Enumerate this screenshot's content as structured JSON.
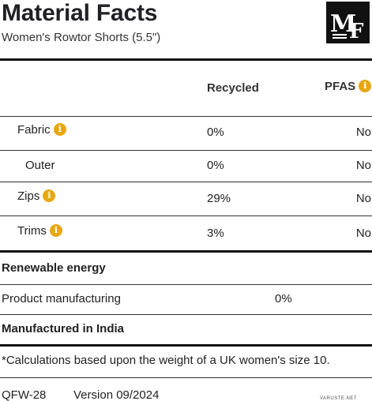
{
  "header": {
    "title": "Material Facts",
    "subtitle": "Women's Rowtor Shorts (5.5\")",
    "logo_text": "MF",
    "logo_icon": "mf-monogram-logo"
  },
  "table": {
    "columns": {
      "recycled": "Recycled",
      "pfas": "PFAS"
    },
    "info_glyph": "i",
    "rows": [
      {
        "label": "Fabric",
        "has_info": true,
        "recycled": "0%",
        "pfas": "No"
      },
      {
        "label": "Outer",
        "has_info": false,
        "recycled": "0%",
        "pfas": "No"
      },
      {
        "label": "Zips",
        "has_info": true,
        "recycled": "29%",
        "pfas": "No"
      },
      {
        "label": "Trims",
        "has_info": true,
        "recycled": "3%",
        "pfas": "No"
      }
    ]
  },
  "renewable": {
    "heading": "Renewable energy",
    "row_label": "Product manufacturing",
    "row_value": "0%"
  },
  "manufactured": "Manufactured in India",
  "footnote": "*Calculations based upon the weight of a UK women's size 10.",
  "footer": {
    "code": "QFW-28",
    "version": "Version 09/2024"
  },
  "watermark": "VARUSTE.NET",
  "colors": {
    "info_badge": "#e8a70f",
    "rule": "#111111"
  }
}
